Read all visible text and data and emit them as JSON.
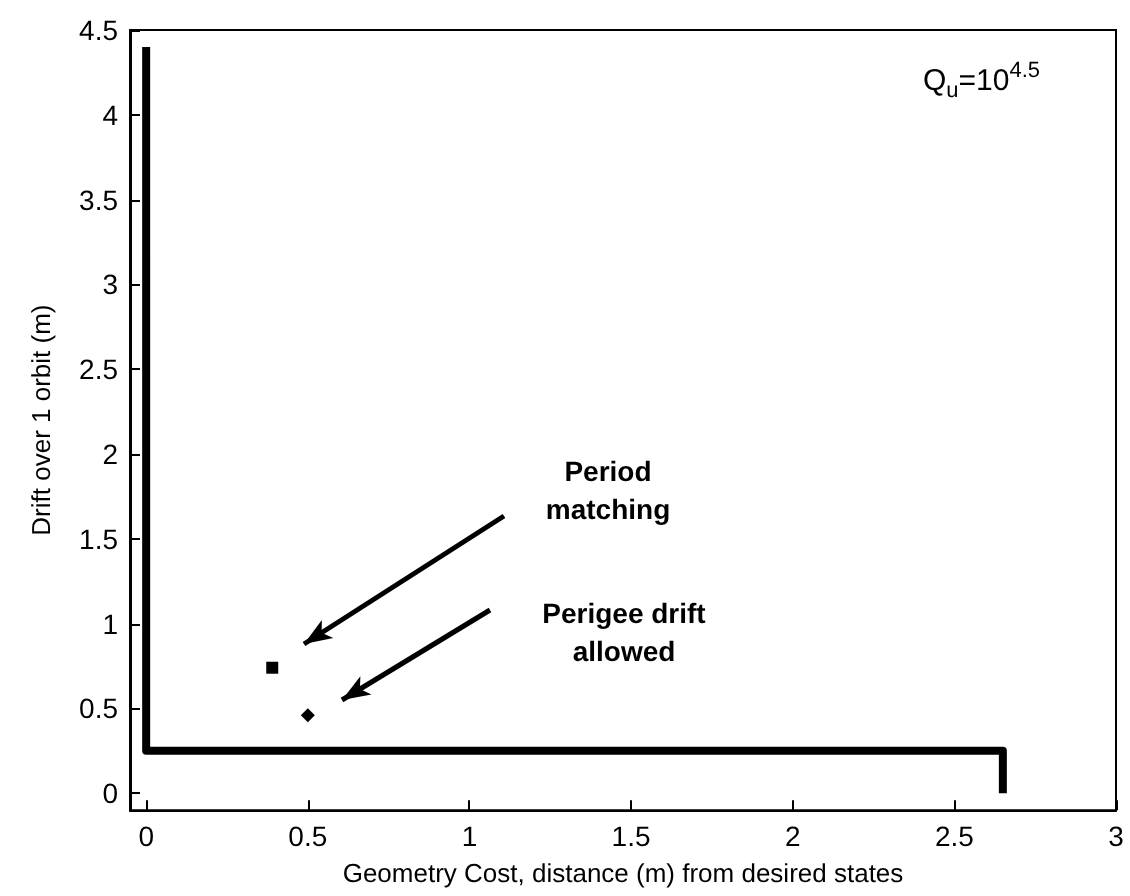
{
  "chart_data": {
    "type": "line",
    "xlabel": "Geometry Cost, distance (m) from desired states",
    "ylabel": "Drift over 1 orbit (m)",
    "xlim": [
      -0.05,
      3
    ],
    "xticks": [
      0,
      0.5,
      1,
      1.5,
      2,
      2.5,
      3
    ],
    "ylim": [
      -0.1,
      4.5
    ],
    "yticks": [
      0,
      0.5,
      1,
      1.5,
      2,
      2.5,
      3,
      3.5,
      4,
      4.5
    ],
    "grid": false,
    "series": [
      {
        "color": "#000000",
        "marker": "none",
        "x": [
          0,
          0,
          2.65,
          2.65
        ],
        "values": [
          4.4,
          0.25,
          0.25,
          0
        ]
      },
      {
        "type": "scatter",
        "color": "#000000",
        "marker": "square",
        "x": [
          0.39
        ],
        "values": [
          0.74
        ]
      },
      {
        "type": "scatter",
        "color": "#000000",
        "marker": "diamond",
        "x": [
          0.5
        ],
        "values": [
          0.46
        ]
      }
    ],
    "annotations": [
      "Period matching",
      "Perigee drift allowed",
      "Q$_{u}$=10$^{4.5}$"
    ]
  }
}
